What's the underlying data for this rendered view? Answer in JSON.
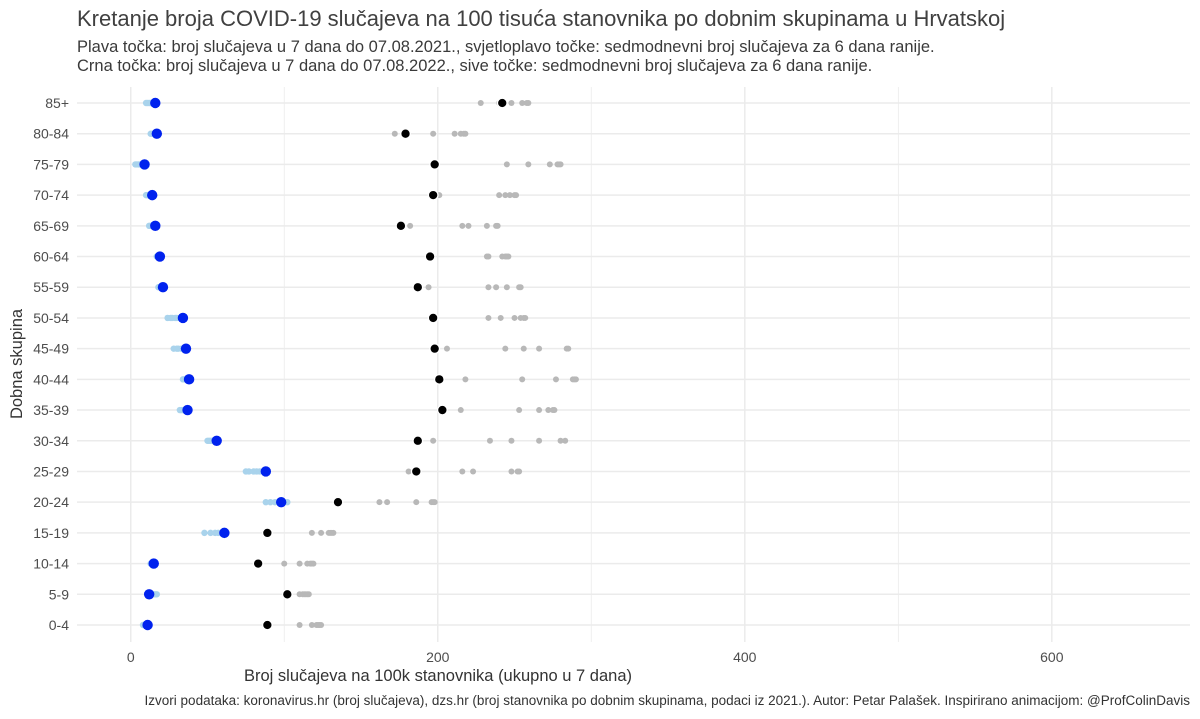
{
  "chart_data": {
    "type": "scatter",
    "title": "Kretanje broja COVID-19 slučajeva na 100 tisuća stanovnika po dobnim skupinama u Hrvatskoj",
    "subtitle_line1": "Plava točka: broj slučajeva u 7 dana do 07.08.2021., svjetloplavo točke: sedmodnevni broj slučajeva za 6 dana ranije.",
    "subtitle_line2": "Crna točka: broj slučajeva u 7 dana do 07.08.2022., sive točke: sedmodnevni broj slučajeva za 6 dana ranije.",
    "xlabel": "Broj slučajeva na 100k stanovnika (ukupno u 7 dana)",
    "ylabel": "Dobna skupina",
    "caption": "Izvori podataka: koronavirus.hr (broj slučajeva), dzs.hr (broj stanovnika po dobnim skupinama, podaci iz 2021.). Autor: Petar Palašek. Inspirirano animacijom: @ProfColinDavis",
    "xlim": [
      -35,
      690
    ],
    "x_ticks": [
      0,
      200,
      400,
      600
    ],
    "grid": true,
    "categories": [
      "0-4",
      "5-9",
      "10-14",
      "15-19",
      "20-24",
      "25-29",
      "30-34",
      "35-39",
      "40-44",
      "45-49",
      "50-54",
      "55-59",
      "60-64",
      "65-69",
      "70-74",
      "75-79",
      "80-84",
      "85+"
    ],
    "colors": {
      "blue": "#0022ee",
      "light_blue": "#a9d3ec",
      "black": "#000000",
      "grey": "#b8b8b8",
      "grid": "#ebebeb"
    },
    "series": [
      {
        "name": "Plava točka: broj slučajeva u 7 dana do 07.08.2021.",
        "values": [
          11,
          12,
          15,
          61,
          98,
          88,
          56,
          37,
          38,
          36,
          34,
          21,
          19,
          16,
          14,
          9,
          17,
          16
        ]
      },
      {
        "name": "Svjetloplave točke: sedmodnevni broj slučajeva za 6 dana ranije (2021.)",
        "values": [
          [
            8,
            9,
            10,
            10,
            11,
            11
          ],
          [
            11,
            12,
            14,
            15,
            16,
            17
          ],
          [
            13,
            14,
            14,
            15,
            15,
            15
          ],
          [
            48,
            52,
            55,
            57,
            59,
            60
          ],
          [
            88,
            91,
            94,
            97,
            100,
            102
          ],
          [
            75,
            77,
            80,
            82,
            84,
            86
          ],
          [
            50,
            51,
            52,
            53,
            54,
            55
          ],
          [
            32,
            33,
            34,
            35,
            36,
            36
          ],
          [
            34,
            35,
            36,
            37,
            37,
            38
          ],
          [
            28,
            30,
            31,
            33,
            34,
            35
          ],
          [
            24,
            26,
            27,
            29,
            30,
            32
          ],
          [
            18,
            19,
            19,
            20,
            20,
            21
          ],
          [
            17,
            17,
            18,
            18,
            19,
            19
          ],
          [
            12,
            13,
            14,
            14,
            15,
            15
          ],
          [
            10,
            11,
            12,
            12,
            13,
            13
          ],
          [
            3,
            4,
            5,
            6,
            7,
            8
          ],
          [
            13,
            14,
            15,
            15,
            16,
            16
          ],
          [
            10,
            11,
            12,
            13,
            14,
            15
          ]
        ]
      },
      {
        "name": "Crna točka: broj slučajeva u 7 dana do 07.08.2022.",
        "values": [
          89,
          102,
          83,
          89,
          135,
          186,
          187,
          203,
          201,
          198,
          197,
          187,
          195,
          176,
          197,
          198,
          179,
          242
        ]
      },
      {
        "name": "Sive točke: sedmodnevni broj slučajeva za 6 dana ranije (2022.)",
        "values": [
          [
            110,
            118,
            121,
            122,
            123,
            124
          ],
          [
            110,
            112,
            113,
            114,
            115,
            116
          ],
          [
            100,
            110,
            115,
            117,
            118,
            119
          ],
          [
            118,
            124,
            129,
            130,
            131,
            132
          ],
          [
            162,
            167,
            186,
            198,
            196,
            197
          ],
          [
            181,
            216,
            223,
            248,
            253,
            252
          ],
          [
            197,
            234,
            248,
            266,
            283,
            280
          ],
          [
            215,
            253,
            266,
            272,
            275,
            276
          ],
          [
            218,
            255,
            277,
            288,
            289,
            290
          ],
          [
            206,
            244,
            256,
            266,
            284,
            285
          ],
          [
            233,
            241,
            250,
            254,
            256,
            257
          ],
          [
            194,
            233,
            238,
            245,
            253,
            254
          ],
          [
            232,
            233,
            242,
            244,
            245,
            246
          ],
          [
            182,
            216,
            220,
            232,
            238,
            239
          ],
          [
            201,
            240,
            244,
            247,
            250,
            251
          ],
          [
            245,
            259,
            273,
            278,
            279,
            280
          ],
          [
            172,
            197,
            211,
            215,
            217,
            218
          ],
          [
            228,
            240,
            248,
            255,
            258,
            259
          ]
        ]
      }
    ]
  }
}
